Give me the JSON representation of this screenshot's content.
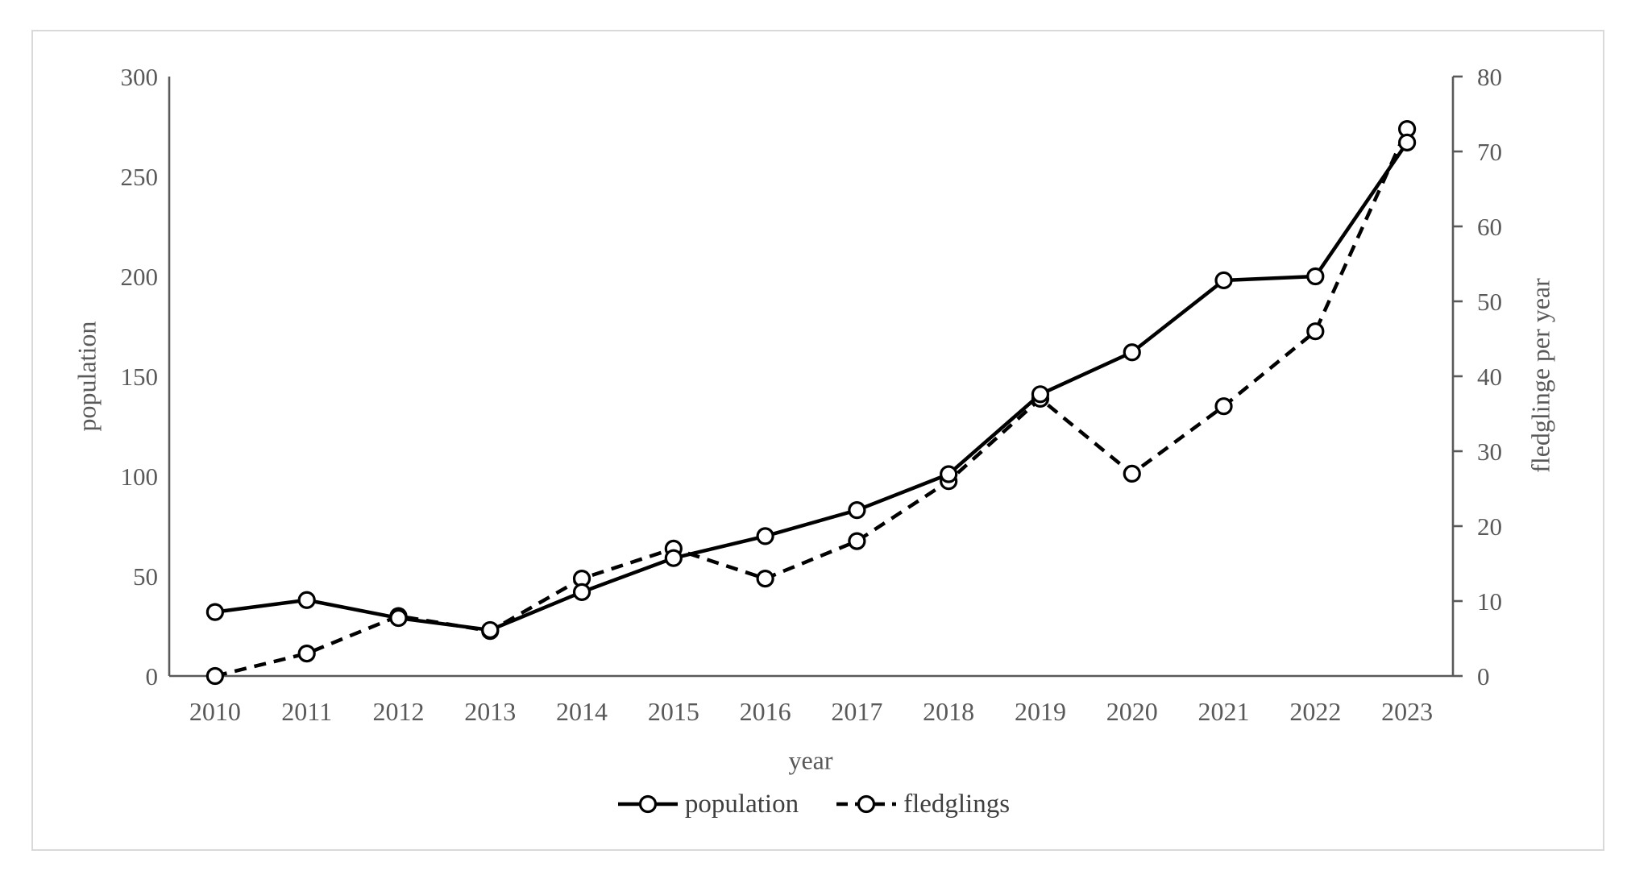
{
  "colors": {
    "series_line": "#000000",
    "marker_fill": "#ffffff",
    "axis_line": "#595959",
    "tick_text": "#595959",
    "frame_border": "#d9d9d9",
    "background": "#ffffff"
  },
  "chart_data": {
    "type": "line",
    "title": "",
    "x": [
      2010,
      2011,
      2012,
      2013,
      2014,
      2015,
      2016,
      2017,
      2018,
      2019,
      2020,
      2021,
      2022,
      2023
    ],
    "series": [
      {
        "name": "fledglings",
        "axis": "right",
        "line_style": "dashed",
        "marker": "circle",
        "values": [
          0,
          3,
          8,
          6,
          13,
          17,
          13,
          18,
          26,
          37,
          27,
          36,
          46,
          73
        ]
      },
      {
        "name": "population",
        "axis": "left",
        "line_style": "solid",
        "marker": "circle",
        "values": [
          32,
          38,
          29,
          23,
          42,
          59,
          70,
          83,
          101,
          141,
          162,
          198,
          200,
          267
        ]
      }
    ],
    "left_axis": {
      "label": "population",
      "min": 0,
      "max": 300,
      "step": 50,
      "ticks": [
        0,
        50,
        100,
        150,
        200,
        250,
        300
      ]
    },
    "right_axis": {
      "label": "fledglinge per year",
      "min": 0,
      "max": 80,
      "step": 10,
      "ticks": [
        0,
        10,
        20,
        30,
        40,
        50,
        60,
        70,
        80
      ]
    },
    "x_axis": {
      "label": "year"
    },
    "legend": {
      "position": "bottom",
      "entries": [
        "population",
        "fledglings"
      ]
    },
    "grid": "off"
  }
}
